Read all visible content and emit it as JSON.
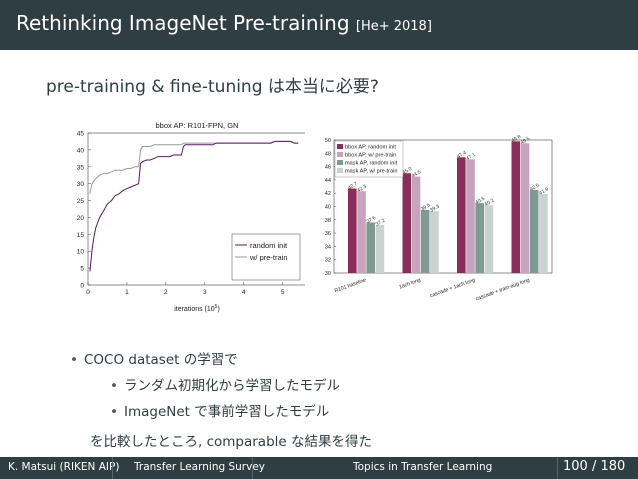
{
  "header": {
    "title": "Rethinking ImageNet Pre-training",
    "citation": "[He+ 2018]"
  },
  "subtitle": "pre-training & fine-tuning は本当に必要?",
  "left_chart": {
    "title": "bbox AP: R101-FPN, GN",
    "xlabel": "iterations (10",
    "xlabel_exp": "5",
    "xlabel_close": ")",
    "yticks": [
      "0",
      "5",
      "10",
      "15",
      "20",
      "25",
      "30",
      "35",
      "40",
      "45"
    ],
    "xticks": [
      "0",
      "1",
      "2",
      "3",
      "4",
      "5"
    ],
    "legend": [
      "random init",
      "w/ pre-train"
    ],
    "colors": {
      "random": "#5a1760",
      "pretrain": "#9a9a9a"
    }
  },
  "right_chart": {
    "yticks": [
      "30",
      "32",
      "34",
      "36",
      "38",
      "40",
      "42",
      "44",
      "46",
      "48",
      "50"
    ],
    "legend": [
      "bbox AP, random init",
      "bbox AP, w/ pre-train",
      "mask AP, random init",
      "mask AP, w/ pre-train"
    ],
    "groups": [
      "R101 baseline",
      "1ach long",
      "cascade + 1ach long",
      "cascade + train-aug long"
    ],
    "colors": [
      "#8a2d5a",
      "#c7a3be",
      "#7f9993",
      "#c9d4d0"
    ]
  },
  "chart_data": [
    {
      "type": "line",
      "title": "bbox AP: R101-FPN, GN",
      "xlabel": "iterations (10^5)",
      "ylabel": "",
      "xlim": [
        0,
        5.6
      ],
      "ylim": [
        0,
        45
      ],
      "series": [
        {
          "name": "random init",
          "x": [
            0.05,
            0.1,
            0.15,
            0.2,
            0.3,
            0.4,
            0.5,
            0.6,
            0.7,
            0.8,
            0.9,
            1.0,
            1.1,
            1.2,
            1.3,
            1.35,
            1.4,
            1.5,
            1.6,
            1.7,
            1.8,
            1.9,
            2.0,
            2.1,
            2.2,
            2.3,
            2.4,
            2.45,
            2.5,
            2.6,
            2.7,
            2.8,
            2.9,
            3.0,
            3.1,
            3.2,
            3.3,
            3.4,
            3.5,
            3.6,
            3.7,
            3.8,
            3.9,
            4.0,
            4.1,
            4.2,
            4.3,
            4.4,
            4.5,
            4.6,
            4.7,
            4.8,
            4.9,
            5.0,
            5.1,
            5.2,
            5.3,
            5.4
          ],
          "values": [
            4,
            10,
            14,
            17,
            20,
            22,
            24,
            25,
            26.5,
            27,
            28,
            28.5,
            29,
            29.5,
            30,
            36,
            36.5,
            37,
            37,
            37.5,
            38,
            38,
            38,
            38,
            38.5,
            38.5,
            38.5,
            41,
            41.5,
            41.5,
            41.5,
            41.5,
            41.5,
            41.5,
            41.5,
            41.5,
            42,
            42,
            42,
            42,
            42,
            42,
            42,
            42,
            42,
            42,
            42,
            42,
            42,
            42,
            42,
            42.5,
            42.5,
            42.5,
            42.5,
            42.5,
            42,
            42
          ]
        },
        {
          "name": "w/ pre-train",
          "x": [
            0.05,
            0.1,
            0.2,
            0.3,
            0.4,
            0.5,
            0.6,
            0.7,
            0.8,
            0.9,
            1.0,
            1.1,
            1.2,
            1.3,
            1.35,
            1.4,
            1.5,
            1.6,
            1.7,
            1.8,
            1.9,
            2.0,
            2.1,
            2.2,
            2.3,
            2.4,
            2.45,
            2.5,
            2.6,
            2.7,
            2.8,
            2.9,
            3.0,
            3.1,
            3.2,
            3.3,
            3.4,
            3.5,
            3.6,
            3.7,
            3.8,
            3.9,
            4.0,
            4.1,
            4.2,
            4.3,
            4.4,
            4.5,
            4.6,
            4.7,
            4.8,
            4.9,
            5.0,
            5.1,
            5.2,
            5.3,
            5.4
          ],
          "values": [
            27,
            30,
            31.5,
            32.5,
            33,
            33,
            33.5,
            34,
            34,
            34,
            34.5,
            34.5,
            35,
            35,
            40,
            41,
            41,
            41,
            41.5,
            41.5,
            41.5,
            41.5,
            41.5,
            41.5,
            41.5,
            41.5,
            42,
            42,
            42,
            42,
            42,
            42,
            42,
            42,
            42,
            42,
            42,
            42,
            42,
            42,
            42,
            42,
            42,
            42,
            42,
            42,
            42,
            42,
            42,
            42,
            42.5,
            42.5,
            42.5,
            42.5,
            42.5,
            42,
            42
          ]
        }
      ]
    },
    {
      "type": "bar",
      "categories": [
        "R101 baseline",
        "1ach long",
        "cascade + 1ach long",
        "cascade + train-aug long"
      ],
      "ylim": [
        30,
        50
      ],
      "series": [
        {
          "name": "bbox AP, random init",
          "values": [
            42.7,
            45.0,
            47.4,
            49.8
          ]
        },
        {
          "name": "bbox AP, w/ pre-train",
          "values": [
            42.3,
            44.5,
            47.1,
            49.5
          ]
        },
        {
          "name": "mask AP, random init",
          "values": [
            37.6,
            39.5,
            40.5,
            42.5
          ]
        },
        {
          "name": "mask AP, w/ pre-train",
          "values": [
            37.2,
            39.3,
            40.2,
            41.9
          ]
        }
      ]
    }
  ],
  "bullets": {
    "b1": "COCO dataset の学習で",
    "b2": "ランダム初期化から学習したモデル",
    "b3": "ImageNet で事前学習したモデル",
    "b4": "を比較したところ, comparable な結果を得た",
    "marker": "•"
  },
  "footer": {
    "author": "K. Matsui (RIKEN AIP)",
    "talk": "Transfer Learning Survey",
    "section": "Topics in Transfer Learning",
    "page_current": "100",
    "page_sep": "/",
    "page_total": "180"
  }
}
